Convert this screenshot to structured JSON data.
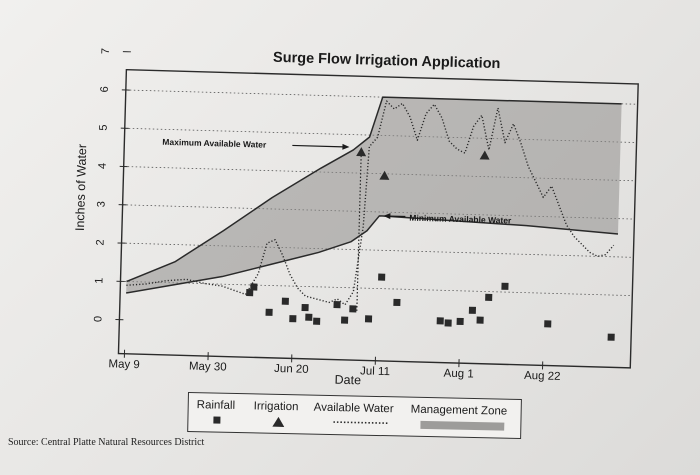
{
  "chart_data": {
    "type": "line",
    "title": "Surge Flow Irrigation Application",
    "xlabel": "Date",
    "ylabel": "Inches of Water",
    "x_ticks": [
      "May 9",
      "May 30",
      "Jun 20",
      "Jul 11",
      "Aug 1",
      "Aug 22"
    ],
    "x_tick_days": [
      0,
      21,
      42,
      63,
      84,
      105
    ],
    "xlim": [
      0,
      125
    ],
    "y_ticks": [
      0,
      1,
      2,
      3,
      4,
      5,
      6,
      7
    ],
    "ylim": [
      0,
      7
    ],
    "grid": "dotted horizontal",
    "series": [
      {
        "name": "Maximum Available Water",
        "style": "line",
        "color": "#2a2a2a",
        "x": [
          0,
          12,
          24,
          36,
          48,
          56,
          60,
          63,
          100,
          123
        ],
        "y": [
          1.0,
          1.55,
          2.4,
          3.3,
          4.1,
          4.6,
          4.95,
          6.0,
          6.0,
          6.0
        ]
      },
      {
        "name": "Minimum Available Water",
        "style": "line",
        "color": "#2a2a2a",
        "x": [
          0,
          12,
          24,
          36,
          48,
          56,
          60,
          63,
          100,
          123
        ],
        "y": [
          0.7,
          0.95,
          1.2,
          1.55,
          1.9,
          2.2,
          2.5,
          2.9,
          2.75,
          2.6
        ]
      },
      {
        "name": "Available Water",
        "style": "dotted",
        "color": "#2a2a2a",
        "x": [
          0,
          5,
          10,
          15,
          20,
          24,
          27,
          30,
          33,
          35,
          37,
          39,
          41,
          43,
          45,
          47,
          49,
          51,
          53,
          55,
          57,
          59,
          60,
          62,
          64,
          66,
          68,
          70,
          72,
          74,
          76,
          78,
          80,
          82,
          84,
          86,
          88,
          90,
          92,
          94,
          96,
          98,
          100,
          102,
          104,
          106,
          108,
          110,
          112,
          114,
          116,
          118,
          120,
          122
        ],
        "y": [
          0.9,
          0.95,
          1.05,
          1.1,
          1.0,
          0.95,
          0.85,
          0.75,
          1.3,
          2.1,
          2.2,
          1.8,
          1.3,
          0.95,
          0.75,
          0.7,
          0.65,
          0.6,
          0.7,
          0.55,
          0.9,
          2.6,
          4.7,
          4.95,
          5.9,
          5.7,
          5.85,
          5.5,
          4.9,
          5.6,
          5.85,
          5.5,
          4.9,
          4.7,
          4.6,
          5.3,
          5.6,
          4.7,
          5.8,
          4.9,
          5.4,
          4.9,
          4.3,
          3.9,
          3.5,
          3.8,
          3.3,
          2.8,
          2.5,
          2.3,
          2.1,
          2.0,
          2.05,
          2.3
        ]
      }
    ],
    "rainfall": {
      "name": "Rainfall",
      "x": [
        31,
        32,
        36,
        40,
        42,
        45,
        46,
        48,
        53,
        55,
        57,
        61,
        64,
        68,
        79,
        81,
        84,
        87,
        89,
        91,
        95,
        106,
        122
      ],
      "y": [
        0.8,
        0.95,
        0.3,
        0.6,
        0.15,
        0.45,
        0.2,
        0.1,
        0.55,
        0.15,
        0.45,
        0.2,
        1.3,
        0.65,
        0.2,
        0.15,
        0.2,
        0.5,
        0.25,
        0.85,
        1.15,
        0.2,
        -0.1
      ]
    },
    "irrigation": {
      "name": "Irrigation",
      "x": [
        58,
        64,
        89
      ],
      "y": [
        4.55,
        3.95,
        4.55
      ]
    },
    "management_zone": {
      "name": "Management Zone",
      "upper": "Maximum Available Water",
      "lower": "Minimum Available Water"
    },
    "annotations": [
      {
        "text": "Maximum Available Water",
        "points_to_x": 55,
        "points_to_y": 4.7
      },
      {
        "text": "Minimum Available Water",
        "points_to_x": 64,
        "points_to_y": 2.9
      }
    ],
    "legend": [
      "Rainfall",
      "Irrigation",
      "Available Water",
      "Management Zone"
    ],
    "legend_position": "bottom"
  },
  "source": "Source: Central Platte Natural Resources District"
}
